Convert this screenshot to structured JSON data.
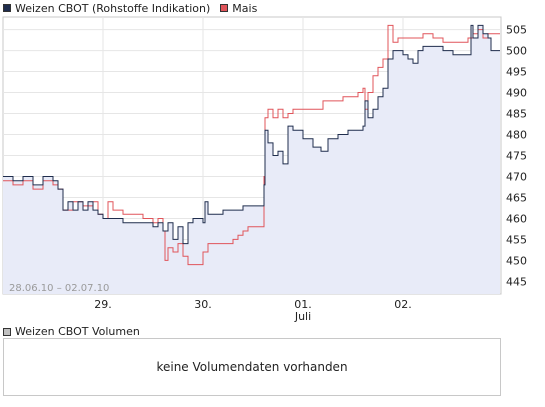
{
  "legend": {
    "items": [
      {
        "label": "Weizen CBOT (Rohstoffe Indikation)",
        "color": "#1f2d4d"
      },
      {
        "label": "Mais",
        "color": "#e0545a"
      }
    ]
  },
  "chart_data": {
    "type": "line",
    "title": "",
    "xlabel": "",
    "ylabel": "",
    "date_range_label": "28.06.10 – 02.07.10",
    "x_ticks": [
      {
        "label": "29.",
        "sublabel": ""
      },
      {
        "label": "30.",
        "sublabel": ""
      },
      {
        "label": "01.",
        "sublabel": "Juli"
      },
      {
        "label": "02.",
        "sublabel": ""
      }
    ],
    "y_ticks": [
      445,
      450,
      455,
      460,
      465,
      470,
      475,
      480,
      485,
      490,
      495,
      500,
      505
    ],
    "ylim": [
      442,
      508
    ],
    "x_range": [
      0,
      4.97
    ],
    "grid": true,
    "legend_position": "top-left",
    "series": [
      {
        "name": "Weizen CBOT (Rohstoffe Indikation)",
        "color": "#1f2d4d",
        "filled": true,
        "points": [
          [
            0.0,
            470
          ],
          [
            0.1,
            469
          ],
          [
            0.2,
            470
          ],
          [
            0.3,
            468
          ],
          [
            0.4,
            470
          ],
          [
            0.5,
            469
          ],
          [
            0.55,
            467
          ],
          [
            0.6,
            462
          ],
          [
            0.65,
            464
          ],
          [
            0.7,
            462
          ],
          [
            0.75,
            464
          ],
          [
            0.8,
            462
          ],
          [
            0.85,
            464
          ],
          [
            0.9,
            462
          ],
          [
            0.95,
            461
          ],
          [
            1.0,
            460
          ],
          [
            1.1,
            460
          ],
          [
            1.2,
            459
          ],
          [
            1.3,
            459
          ],
          [
            1.4,
            459
          ],
          [
            1.5,
            458
          ],
          [
            1.55,
            459
          ],
          [
            1.6,
            457
          ],
          [
            1.65,
            459
          ],
          [
            1.7,
            455
          ],
          [
            1.75,
            458
          ],
          [
            1.8,
            454
          ],
          [
            1.85,
            459
          ],
          [
            1.9,
            460
          ],
          [
            1.95,
            460
          ],
          [
            2.0,
            459
          ],
          [
            2.02,
            464
          ],
          [
            2.05,
            461
          ],
          [
            2.1,
            461
          ],
          [
            2.2,
            462
          ],
          [
            2.3,
            462
          ],
          [
            2.4,
            463
          ],
          [
            2.5,
            463
          ],
          [
            2.6,
            463
          ],
          [
            2.61,
            468
          ],
          [
            2.62,
            481
          ],
          [
            2.65,
            478
          ],
          [
            2.7,
            475
          ],
          [
            2.75,
            476
          ],
          [
            2.8,
            473
          ],
          [
            2.85,
            482
          ],
          [
            2.9,
            481
          ],
          [
            3.0,
            479
          ],
          [
            3.1,
            477
          ],
          [
            3.18,
            476
          ],
          [
            3.25,
            479
          ],
          [
            3.35,
            480
          ],
          [
            3.45,
            481
          ],
          [
            3.55,
            481
          ],
          [
            3.6,
            482
          ],
          [
            3.62,
            488
          ],
          [
            3.65,
            484
          ],
          [
            3.7,
            486
          ],
          [
            3.75,
            489
          ],
          [
            3.8,
            491
          ],
          [
            3.85,
            498
          ],
          [
            3.9,
            500
          ],
          [
            3.95,
            500
          ],
          [
            4.0,
            499
          ],
          [
            4.05,
            498
          ],
          [
            4.1,
            497
          ],
          [
            4.15,
            500
          ],
          [
            4.2,
            501
          ],
          [
            4.3,
            501
          ],
          [
            4.4,
            500
          ],
          [
            4.5,
            499
          ],
          [
            4.6,
            499
          ],
          [
            4.65,
            499
          ],
          [
            4.68,
            506
          ],
          [
            4.7,
            503
          ],
          [
            4.75,
            506
          ],
          [
            4.8,
            504
          ],
          [
            4.85,
            503
          ],
          [
            4.88,
            500
          ],
          [
            4.92,
            500
          ],
          [
            4.97,
            500
          ]
        ]
      },
      {
        "name": "Mais",
        "color": "#e0545a",
        "filled": false,
        "points": [
          [
            0.0,
            469
          ],
          [
            0.1,
            468
          ],
          [
            0.2,
            469
          ],
          [
            0.3,
            467
          ],
          [
            0.4,
            469
          ],
          [
            0.5,
            468
          ],
          [
            0.55,
            467
          ],
          [
            0.6,
            462
          ],
          [
            0.7,
            464
          ],
          [
            0.8,
            463
          ],
          [
            0.9,
            464
          ],
          [
            0.95,
            461
          ],
          [
            1.0,
            460
          ],
          [
            1.05,
            464
          ],
          [
            1.1,
            462
          ],
          [
            1.2,
            461
          ],
          [
            1.3,
            461
          ],
          [
            1.4,
            460
          ],
          [
            1.5,
            459
          ],
          [
            1.55,
            460
          ],
          [
            1.6,
            457
          ],
          [
            1.62,
            450
          ],
          [
            1.65,
            453
          ],
          [
            1.7,
            452
          ],
          [
            1.75,
            454
          ],
          [
            1.8,
            451
          ],
          [
            1.85,
            449
          ],
          [
            1.9,
            449
          ],
          [
            1.95,
            449
          ],
          [
            2.0,
            452
          ],
          [
            2.05,
            454
          ],
          [
            2.1,
            454
          ],
          [
            2.2,
            454
          ],
          [
            2.3,
            455
          ],
          [
            2.35,
            456
          ],
          [
            2.4,
            457
          ],
          [
            2.45,
            458
          ],
          [
            2.5,
            458
          ],
          [
            2.55,
            458
          ],
          [
            2.58,
            458
          ],
          [
            2.6,
            458
          ],
          [
            2.61,
            470
          ],
          [
            2.62,
            484
          ],
          [
            2.65,
            486
          ],
          [
            2.7,
            484
          ],
          [
            2.75,
            486
          ],
          [
            2.8,
            484
          ],
          [
            2.85,
            485
          ],
          [
            2.9,
            486
          ],
          [
            3.0,
            486
          ],
          [
            3.1,
            486
          ],
          [
            3.2,
            488
          ],
          [
            3.3,
            488
          ],
          [
            3.4,
            489
          ],
          [
            3.5,
            489
          ],
          [
            3.55,
            490
          ],
          [
            3.6,
            491
          ],
          [
            3.62,
            486
          ],
          [
            3.65,
            490
          ],
          [
            3.7,
            494
          ],
          [
            3.75,
            496
          ],
          [
            3.8,
            498
          ],
          [
            3.85,
            506
          ],
          [
            3.9,
            502
          ],
          [
            3.95,
            503
          ],
          [
            4.0,
            503
          ],
          [
            4.1,
            503
          ],
          [
            4.2,
            504
          ],
          [
            4.3,
            503
          ],
          [
            4.4,
            502
          ],
          [
            4.5,
            502
          ],
          [
            4.6,
            502
          ],
          [
            4.65,
            503
          ],
          [
            4.7,
            504
          ],
          [
            4.75,
            505
          ],
          [
            4.8,
            503
          ],
          [
            4.85,
            504
          ],
          [
            4.9,
            504
          ],
          [
            4.97,
            504
          ]
        ]
      }
    ]
  },
  "volume": {
    "legend_label": "Weizen CBOT Volumen",
    "empty_message": "keine Volumendaten vorhanden"
  }
}
